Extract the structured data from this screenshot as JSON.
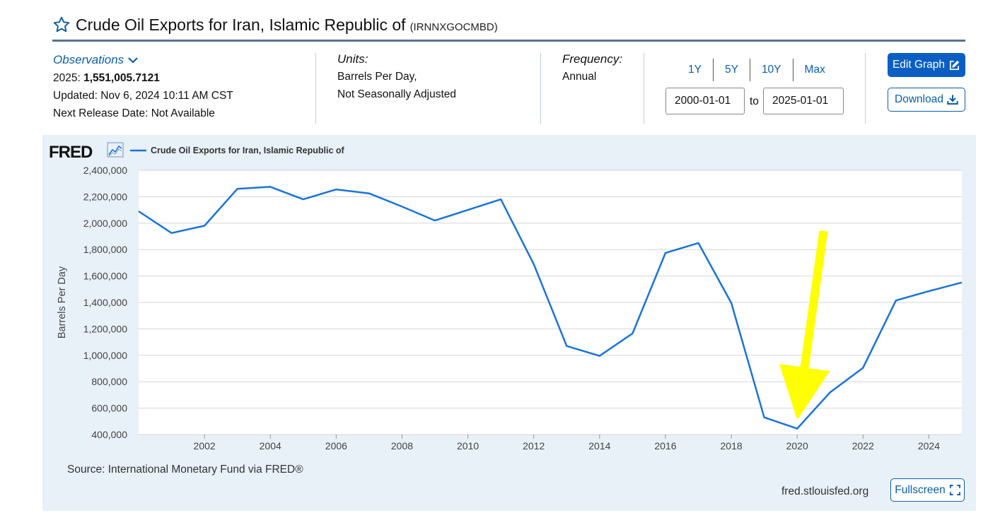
{
  "header": {
    "title": "Crude Oil Exports for Iran, Islamic Republic of",
    "series_id": "(IRNNXGOCMBD)"
  },
  "observations": {
    "link_label": "Observations",
    "latest_period": "2025:",
    "latest_value": "1,551,005.7121",
    "updated": "Updated: Nov 6, 2024 10:11 AM CST",
    "next_release": "Next Release Date: Not Available"
  },
  "units": {
    "label": "Units:",
    "line1": "Barrels Per Day,",
    "line2": "Not Seasonally Adjusted"
  },
  "frequency": {
    "label": "Frequency:",
    "value": "Annual"
  },
  "range": {
    "buttons": [
      "1Y",
      "5Y",
      "10Y",
      "Max"
    ],
    "start": "2000-01-01",
    "to_label": "to",
    "end": "2025-01-01"
  },
  "actions": {
    "edit_label": "Edit Graph",
    "download_label": "Download",
    "fullscreen_label": "Fullscreen"
  },
  "footer": {
    "source": "Source: International Monetary Fund via FRED®",
    "credit": "fred.stlouisfed.org"
  },
  "brand": {
    "logo_text": "FRED",
    "line_color": "#1a73d9",
    "arrow_color": "#ffff00",
    "primary_color": "#0b5fc4"
  },
  "chart_data": {
    "type": "line",
    "title": "",
    "xlabel": "",
    "ylabel": "Barrels Per Day",
    "xlim": [
      2000,
      2025
    ],
    "ylim": [
      400000,
      2400000
    ],
    "y_ticks": [
      400000,
      600000,
      800000,
      1000000,
      1200000,
      1400000,
      1600000,
      1800000,
      2000000,
      2200000,
      2400000
    ],
    "y_tick_labels": [
      "400,000",
      "600,000",
      "800,000",
      "1,000,000",
      "1,200,000",
      "1,400,000",
      "1,600,000",
      "1,800,000",
      "2,000,000",
      "2,200,000",
      "2,400,000"
    ],
    "x_ticks": [
      2002,
      2004,
      2006,
      2008,
      2010,
      2012,
      2014,
      2016,
      2018,
      2020,
      2022,
      2024
    ],
    "x_tick_labels": [
      "2002",
      "2004",
      "2006",
      "2008",
      "2010",
      "2012",
      "2014",
      "2016",
      "2018",
      "2020",
      "2022",
      "2024"
    ],
    "grid": true,
    "legend": "top-left",
    "series": [
      {
        "name": "Crude Oil Exports for Iran, Islamic Republic of",
        "x": [
          2000,
          2001,
          2002,
          2003,
          2004,
          2005,
          2006,
          2007,
          2008,
          2009,
          2010,
          2011,
          2012,
          2013,
          2014,
          2015,
          2016,
          2017,
          2018,
          2019,
          2020,
          2021,
          2022,
          2023,
          2024,
          2025
        ],
        "values": [
          2090000,
          1925000,
          1980000,
          2260000,
          2275000,
          2180000,
          2255000,
          2225000,
          2125000,
          2020000,
          2100000,
          2180000,
          1690000,
          1070000,
          995000,
          1165000,
          1775000,
          1850000,
          1395000,
          530000,
          445000,
          720000,
          905000,
          1415000,
          1485000,
          1551006
        ]
      }
    ],
    "annotation": {
      "type": "arrow",
      "from": [
        2020.8,
        1940000
      ],
      "to": [
        2020,
        510000
      ]
    }
  }
}
